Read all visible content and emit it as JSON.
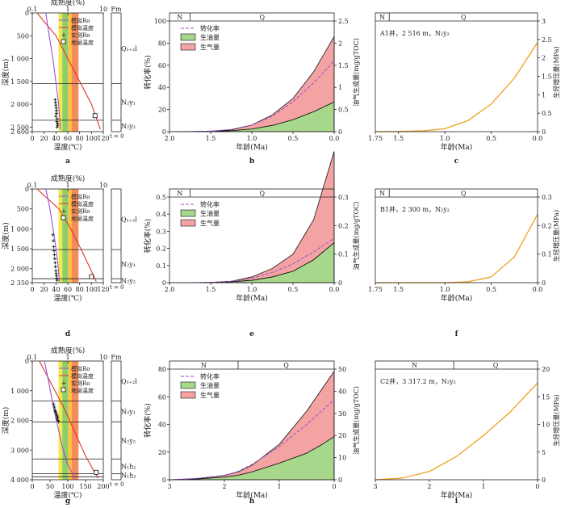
{
  "panels_row": [
    {
      "depth_panel": {
        "letter": "a",
        "top_label": "成熟度(%)",
        "top_ticks": [
          "0.1",
          "1",
          "10"
        ],
        "ylabel": "深度(m)",
        "xlabel": "温度(℃)",
        "xticks": [
          0,
          20,
          40,
          60,
          80,
          100,
          120
        ],
        "yticks": [
          0,
          500,
          1000,
          1500,
          2000,
          2500,
          2600
        ],
        "ylim": [
          0,
          2600
        ],
        "legend": [
          "模拟Ro",
          "模拟温度",
          "实测Ro",
          "地层温度"
        ],
        "fm_header": "Fm",
        "formations": [
          "Q₁₊₂l",
          "N₂y₁",
          "N₂y₂"
        ],
        "boundaries": [
          1550,
          2350
        ],
        "t0_label": "t = 0",
        "ro_model_x": [
          0.24,
          0.3,
          0.38,
          0.46,
          0.55,
          0.62
        ],
        "ro_model_depth": [
          0,
          500,
          1000,
          1500,
          2000,
          2550
        ],
        "temp_model_x": [
          8,
          40,
          60,
          80,
          100,
          115
        ],
        "temp_model_depth": [
          0,
          500,
          1000,
          1500,
          2000,
          2550
        ],
        "measured_ro_x": [
          0.44,
          0.45,
          0.46,
          0.47,
          0.48,
          0.48,
          0.46,
          0.5,
          0.49,
          0.51,
          0.52,
          0.5
        ],
        "measured_ro_depth": [
          1900,
          1960,
          2020,
          2080,
          2140,
          2200,
          2260,
          2320,
          2380,
          2420,
          2460,
          2500
        ],
        "strata_temp": {
          "x": 106,
          "depth": 2250
        },
        "stages": [
          {
            "from": 0.55,
            "to": 0.7,
            "color": "#f6e84b"
          },
          {
            "from": 0.7,
            "to": 1.0,
            "color": "#8dcf6a"
          },
          {
            "from": 1.0,
            "to": 1.3,
            "color": "#f8c34a"
          },
          {
            "from": 1.3,
            "to": 2.0,
            "color": "#f48b5a"
          }
        ]
      },
      "conv_panel": {
        "letter": "b",
        "ylabel_left": "转化率(%)",
        "ylabel_right": "油气生成量(mg/gTOC)",
        "xlabel": "年龄(Ma)",
        "xticks": [
          2.0,
          1.5,
          1.0,
          0.5,
          0.0
        ],
        "xlim": [
          2.0,
          0.0
        ],
        "yticks_left": [
          0,
          20,
          40,
          60,
          80,
          100
        ],
        "yticks_right": [
          0,
          0.5,
          1.0,
          1.5,
          2.0,
          2.5
        ],
        "ylim_right": [
          0,
          2.5
        ],
        "periods": [
          "N",
          "Q"
        ],
        "period_split": 1.75,
        "legend": [
          "转化率",
          "生油量",
          "生气量"
        ]
      },
      "press_panel": {
        "letter": "c",
        "annotation": "A1井，2 516 m，N₂y₂",
        "ylabel_right": "生烃增压量(MPa)",
        "xlabel": "年龄(Ma)",
        "xticks": [
          1.75,
          1.5,
          1.0,
          0.5,
          0.0
        ],
        "xlim": [
          1.75,
          0.0
        ],
        "yticks_right": [
          0,
          0.5,
          1.0,
          1.5,
          2.0,
          2.5,
          3.0
        ],
        "ylim_right": [
          0,
          3.0
        ],
        "periods": [
          "N",
          "Q"
        ],
        "period_split": 1.6
      }
    },
    {
      "depth_panel": {
        "letter": "d",
        "top_label": "成熟度(%)",
        "top_ticks": [
          "0.1",
          "1",
          "10"
        ],
        "ylabel": "深度(m)",
        "xlabel": "温度(℃)",
        "xticks": [
          0,
          20,
          40,
          60,
          80,
          100,
          120
        ],
        "yticks": [
          0,
          500,
          1000,
          1500,
          2000,
          2350
        ],
        "ylim": [
          0,
          2350
        ],
        "legend": [
          "模拟Ro",
          "模拟温度",
          "实测Ro",
          "地层温度"
        ],
        "fm_header": "",
        "formations": [
          "Q₁₊₂l",
          "N₂y₁",
          "N₂y₂"
        ],
        "boundaries": [
          1520,
          2250
        ],
        "t0_label": "t = 0",
        "ro_model_x": [
          0.24,
          0.3,
          0.37,
          0.45,
          0.53,
          0.58
        ],
        "ro_model_depth": [
          0,
          400,
          900,
          1400,
          1900,
          2320
        ],
        "temp_model_x": [
          8,
          45,
          65,
          82,
          98,
          108
        ],
        "temp_model_depth": [
          0,
          500,
          1000,
          1500,
          2000,
          2320
        ],
        "measured_ro_x": [
          0.38,
          0.39,
          0.4,
          0.41,
          0.42,
          0.43,
          0.44,
          0.45,
          0.46,
          0.47,
          0.48,
          0.49,
          0.5
        ],
        "measured_ro_depth": [
          1150,
          1300,
          1450,
          1550,
          1650,
          1750,
          1850,
          1950,
          2050,
          2120,
          2180,
          2240,
          2290
        ],
        "strata_temp": {
          "x": 100,
          "depth": 2200
        },
        "stages": [
          {
            "from": 0.55,
            "to": 0.7,
            "color": "#f6e84b"
          },
          {
            "from": 0.7,
            "to": 1.0,
            "color": "#8dcf6a"
          },
          {
            "from": 1.0,
            "to": 1.3,
            "color": "#f8c34a"
          },
          {
            "from": 1.3,
            "to": 2.0,
            "color": "#f48b5a"
          }
        ]
      },
      "conv_panel": {
        "letter": "e",
        "ylabel_left": "转化率(%)",
        "ylabel_right": "油气生成量(mg/gTOC)",
        "xlabel": "年龄(Ma)",
        "xticks": [
          2.0,
          1.5,
          1.0,
          0.5,
          0.0
        ],
        "xlim": [
          2.0,
          0.0
        ],
        "yticks_left": [
          0,
          0.1,
          0.2,
          0.3,
          0.4,
          0.5
        ],
        "yticks_right": [
          0,
          0.1,
          0.2,
          0.3
        ],
        "ylim_right": [
          0,
          0.3
        ],
        "periods": [
          "N",
          "Q"
        ],
        "period_split": 1.75,
        "legend": [
          "转化率",
          "生油量",
          "生气量"
        ]
      },
      "press_panel": {
        "letter": "f",
        "annotation": "B1井，2 300 m，N₂y₂",
        "ylabel_right": "生烃增压量(MPa)",
        "xlabel": "年龄(Ma)",
        "xticks": [
          1.75,
          1.5,
          1.0,
          0.5,
          0.0
        ],
        "xlim": [
          1.75,
          0.0
        ],
        "yticks_right": [
          0,
          0.1,
          0.2,
          0.3
        ],
        "ylim_right": [
          0,
          0.3
        ],
        "periods": [
          "N",
          "Q"
        ],
        "period_split": 1.6
      }
    },
    {
      "depth_panel": {
        "letter": "g",
        "top_label": "成熟度(%)",
        "top_ticks": [
          "0.1",
          "1",
          "10"
        ],
        "ylabel": "深度(m)",
        "xlabel": "温度(℃)",
        "xticks": [
          0,
          50,
          100,
          150,
          200
        ],
        "yticks": [
          0,
          1000,
          2000,
          3000,
          4000
        ],
        "ylim": [
          0,
          4000
        ],
        "legend": [
          "模拟Ro",
          "模拟温度",
          "实测Ro",
          "地层温度"
        ],
        "fm_header": "Fm",
        "formations": [
          "Q₁₊₂l",
          "N₂y₁",
          "N₂y₂",
          "N₁h₁",
          "N₁h₂"
        ],
        "boundaries": [
          1350,
          2050,
          3300,
          3800,
          3900
        ],
        "t0_label": "t = 0",
        "ro_model_x": [
          0.22,
          0.3,
          0.4,
          0.52,
          0.7,
          1.0,
          1.6
        ],
        "ro_model_depth": [
          0,
          800,
          1600,
          2200,
          2900,
          3500,
          3950
        ],
        "temp_model_x": [
          20,
          55,
          90,
          120,
          150,
          185
        ],
        "temp_model_depth": [
          0,
          800,
          1600,
          2400,
          3200,
          3950
        ],
        "measured_ro_x": [
          0.4,
          0.42,
          0.44,
          0.45,
          0.47,
          0.48,
          0.5,
          0.52,
          0.5,
          0.53,
          0.55
        ],
        "measured_ro_depth": [
          1450,
          1550,
          1650,
          1700,
          1750,
          1800,
          1850,
          1900,
          1950,
          2000,
          2050
        ],
        "strata_temp": {
          "x": 180,
          "depth": 3750
        },
        "stages": [
          {
            "from": 0.55,
            "to": 0.7,
            "color": "#f6e84b"
          },
          {
            "from": 0.7,
            "to": 1.0,
            "color": "#8dcf6a"
          },
          {
            "from": 1.0,
            "to": 1.3,
            "color": "#f8c34a"
          },
          {
            "from": 1.3,
            "to": 2.0,
            "color": "#f48b5a"
          }
        ]
      },
      "conv_panel": {
        "letter": "h",
        "ylabel_left": "转化率(%)",
        "ylabel_right": "油气生成量(mg/gTOC)",
        "xlabel": "年龄(Ma)",
        "xticks": [
          3,
          2,
          1,
          0
        ],
        "xlim": [
          3.0,
          0.0
        ],
        "yticks_left": [
          0,
          20,
          40,
          60,
          80
        ],
        "yticks_right": [
          0,
          10,
          20,
          30,
          40,
          50
        ],
        "ylim_right": [
          0,
          50
        ],
        "periods": [
          "N",
          "Q"
        ],
        "period_split": 1.75,
        "legend": [
          "转化率",
          "生油量",
          "生气量"
        ]
      },
      "press_panel": {
        "letter": "i",
        "annotation": "C2井，3 317.2 m，N₂y₂",
        "ylabel_right": "生烃增压量(MPa)",
        "xlabel": "年龄(Ma)",
        "xticks": [
          3,
          2,
          1,
          0
        ],
        "xlim": [
          3.0,
          0.0
        ],
        "yticks_right": [
          0,
          5,
          10,
          15,
          20
        ],
        "ylim_right": [
          0,
          20
        ],
        "periods": [
          "N",
          "Q"
        ],
        "period_split": 1.55
      }
    }
  ],
  "chart_data": [
    {
      "type": "area",
      "panel": "b",
      "x": [
        2.0,
        1.75,
        1.5,
        1.25,
        1.0,
        0.75,
        0.5,
        0.25,
        0.0
      ],
      "series": [
        {
          "name": "生油量",
          "values": [
            0,
            0.001,
            0.005,
            0.02,
            0.06,
            0.14,
            0.27,
            0.45,
            0.67
          ]
        },
        {
          "name": "生气量",
          "values": [
            0,
            0.002,
            0.01,
            0.04,
            0.15,
            0.38,
            0.75,
            1.35,
            2.15
          ]
        },
        {
          "name": "转化率",
          "values": [
            0,
            0.1,
            0.5,
            2,
            6,
            14,
            27,
            44,
            64
          ]
        }
      ]
    },
    {
      "type": "line",
      "panel": "c",
      "x": [
        1.75,
        1.5,
        1.25,
        1.0,
        0.75,
        0.5,
        0.25,
        0.0
      ],
      "series": [
        {
          "values": [
            0,
            0.005,
            0.02,
            0.08,
            0.3,
            0.75,
            1.45,
            2.42
          ]
        }
      ]
    },
    {
      "type": "area",
      "panel": "e",
      "x": [
        2.0,
        1.75,
        1.5,
        1.25,
        1.0,
        0.75,
        0.5,
        0.25,
        0.0
      ],
      "series": [
        {
          "name": "生油量",
          "values": [
            0,
            0,
            0.001,
            0.003,
            0.008,
            0.02,
            0.04,
            0.08,
            0.14
          ]
        },
        {
          "name": "生气量",
          "values": [
            0,
            0,
            0.001,
            0.005,
            0.02,
            0.05,
            0.1,
            0.22,
            0.46
          ]
        },
        {
          "name": "转化率",
          "values": [
            0,
            0,
            0.002,
            0.008,
            0.025,
            0.06,
            0.11,
            0.18,
            0.26
          ]
        }
      ]
    },
    {
      "type": "line",
      "panel": "f",
      "x": [
        1.75,
        1.5,
        1.25,
        1.0,
        0.75,
        0.5,
        0.25,
        0.0
      ],
      "series": [
        {
          "values": [
            0,
            0,
            0,
            0,
            0.003,
            0.02,
            0.09,
            0.24
          ]
        }
      ]
    },
    {
      "type": "area",
      "panel": "h",
      "x": [
        3.0,
        2.5,
        2.0,
        1.75,
        1.5,
        1.0,
        0.5,
        0.25,
        0.0
      ],
      "series": [
        {
          "name": "生油量",
          "values": [
            0,
            0.3,
            1.2,
            2.0,
            3.5,
            7.5,
            12.0,
            15.5,
            19.5
          ]
        },
        {
          "name": "生气量",
          "values": [
            0,
            0.5,
            2.0,
            3.5,
            6.5,
            16.0,
            31.0,
            40.0,
            49.0
          ]
        },
        {
          "name": "转化率",
          "values": [
            0,
            1,
            3,
            6,
            11,
            24,
            40,
            49,
            58
          ]
        }
      ]
    },
    {
      "type": "line",
      "panel": "i",
      "x": [
        3.0,
        2.5,
        2.0,
        1.5,
        1.0,
        0.5,
        0.0
      ],
      "series": [
        {
          "values": [
            0,
            0.3,
            1.5,
            4.2,
            8.0,
            12.3,
            17.5
          ]
        }
      ]
    }
  ],
  "colors": {
    "oil": "#a6d78a",
    "gas": "#f4a3a3",
    "conv": "#9b4fd3",
    "press": "#f0a020",
    "ro": "#9b4fd3",
    "temp": "#e03030"
  }
}
